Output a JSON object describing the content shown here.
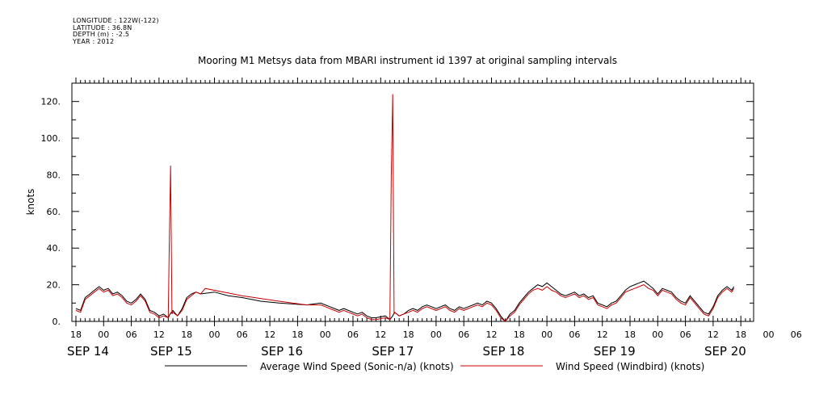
{
  "metadata": {
    "longitude": "LONGITUDE : 122W(-122)",
    "latitude": "LATITUDE : 36.8N",
    "depth": "DEPTH (m) : -2.5",
    "year": "YEAR : 2012"
  },
  "chart_data": {
    "type": "line",
    "title": "Mooring M1 Metsys data from MBARI instrument id 1397 at original sampling intervals",
    "xlabel": "",
    "ylabel": "knots",
    "xlim_hours": [
      0,
      150
    ],
    "ylim": [
      0,
      130
    ],
    "y_ticks": [
      0,
      20,
      40,
      60,
      80,
      100,
      120
    ],
    "y_tick_labels": [
      "0.",
      "20.",
      "40.",
      "60.",
      "80.",
      "100.",
      "120."
    ],
    "x_tick_labels": [
      "18",
      "00",
      "06",
      "12",
      "18",
      "00",
      "06",
      "12",
      "18",
      "00",
      "06",
      "12",
      "18",
      "00",
      "06",
      "12",
      "18",
      "00",
      "06",
      "12",
      "18",
      "00",
      "06",
      "12",
      "18",
      "00",
      "06",
      "12",
      "18"
    ],
    "day_labels": [
      {
        "label": "SEP 14",
        "hour": 0
      },
      {
        "label": "SEP 15",
        "hour": 18
      },
      {
        "label": "SEP 16",
        "hour": 42
      },
      {
        "label": "SEP 17",
        "hour": 66
      },
      {
        "label": "SEP 18",
        "hour": 90
      },
      {
        "label": "SEP 19",
        "hour": 114
      },
      {
        "label": "SEP 20",
        "hour": 138
      }
    ],
    "x_units_note": "hours after 2012-09-14 18:00",
    "series": [
      {
        "name": "Average Wind Speed (Sonic-n/a) (knots)",
        "color": "#000000",
        "points": [
          [
            0,
            7
          ],
          [
            1,
            6
          ],
          [
            2,
            13
          ],
          [
            3,
            15
          ],
          [
            4,
            17
          ],
          [
            5,
            19
          ],
          [
            6,
            17
          ],
          [
            7,
            18
          ],
          [
            8,
            15
          ],
          [
            9,
            16
          ],
          [
            10,
            14
          ],
          [
            11,
            11
          ],
          [
            12,
            10
          ],
          [
            13,
            12
          ],
          [
            14,
            15
          ],
          [
            15,
            12
          ],
          [
            16,
            6
          ],
          [
            17,
            5
          ],
          [
            18,
            3
          ],
          [
            19,
            4
          ],
          [
            20,
            2
          ],
          [
            20.4,
            4
          ],
          [
            21,
            6
          ],
          [
            22,
            3
          ],
          [
            23,
            7
          ],
          [
            24,
            13
          ],
          [
            25,
            15
          ],
          [
            26,
            16
          ],
          [
            27,
            15
          ],
          [
            30,
            16
          ],
          [
            33,
            14
          ],
          [
            36,
            13
          ],
          [
            40,
            11
          ],
          [
            44,
            10
          ],
          [
            50,
            9
          ],
          [
            53,
            10
          ],
          [
            54,
            9
          ],
          [
            55,
            8
          ],
          [
            56,
            7
          ],
          [
            57,
            6
          ],
          [
            58,
            7
          ],
          [
            59,
            6
          ],
          [
            60,
            5
          ],
          [
            61,
            4
          ],
          [
            62,
            5
          ],
          [
            63,
            3
          ],
          [
            64,
            2
          ],
          [
            65,
            2
          ],
          [
            67,
            3
          ],
          [
            68,
            1
          ],
          [
            68.6,
            3
          ],
          [
            69,
            5
          ],
          [
            70,
            3
          ],
          [
            71,
            4
          ],
          [
            72,
            6
          ],
          [
            73,
            7
          ],
          [
            74,
            6
          ],
          [
            75,
            8
          ],
          [
            76,
            9
          ],
          [
            77,
            8
          ],
          [
            78,
            7
          ],
          [
            79,
            8
          ],
          [
            80,
            9
          ],
          [
            81,
            7
          ],
          [
            82,
            6
          ],
          [
            83,
            8
          ],
          [
            84,
            7
          ],
          [
            85,
            8
          ],
          [
            86,
            9
          ],
          [
            87,
            10
          ],
          [
            88,
            9
          ],
          [
            89,
            11
          ],
          [
            90,
            10
          ],
          [
            91,
            7
          ],
          [
            92,
            3
          ],
          [
            93,
            0
          ],
          [
            94,
            4
          ],
          [
            95,
            6
          ],
          [
            96,
            10
          ],
          [
            97,
            13
          ],
          [
            98,
            16
          ],
          [
            99,
            18
          ],
          [
            100,
            20
          ],
          [
            101,
            19
          ],
          [
            102,
            21
          ],
          [
            103,
            19
          ],
          [
            104,
            17
          ],
          [
            105,
            15
          ],
          [
            106,
            14
          ],
          [
            107,
            15
          ],
          [
            108,
            16
          ],
          [
            109,
            14
          ],
          [
            110,
            15
          ],
          [
            111,
            13
          ],
          [
            112,
            14
          ],
          [
            113,
            10
          ],
          [
            114,
            9
          ],
          [
            115,
            8
          ],
          [
            116,
            10
          ],
          [
            117,
            11
          ],
          [
            118,
            14
          ],
          [
            119,
            17
          ],
          [
            120,
            19
          ],
          [
            121,
            20
          ],
          [
            122,
            21
          ],
          [
            123,
            22
          ],
          [
            124,
            20
          ],
          [
            125,
            18
          ],
          [
            126,
            15
          ],
          [
            127,
            18
          ],
          [
            128,
            17
          ],
          [
            129,
            16
          ],
          [
            130,
            13
          ],
          [
            131,
            11
          ],
          [
            132,
            10
          ],
          [
            133,
            14
          ],
          [
            134,
            11
          ],
          [
            135,
            8
          ],
          [
            136,
            5
          ],
          [
            137,
            4
          ],
          [
            138,
            8
          ],
          [
            139,
            14
          ],
          [
            140,
            17
          ],
          [
            141,
            19
          ],
          [
            142,
            17
          ],
          [
            142.5,
            19
          ]
        ]
      },
      {
        "name": "Wind Speed (Windbird) (knots)",
        "color": "#cc0000",
        "points": [
          [
            0,
            6
          ],
          [
            1,
            5
          ],
          [
            2,
            12
          ],
          [
            3,
            14
          ],
          [
            4,
            16
          ],
          [
            5,
            18
          ],
          [
            6,
            16
          ],
          [
            7,
            17
          ],
          [
            8,
            14
          ],
          [
            9,
            15
          ],
          [
            10,
            13
          ],
          [
            11,
            10
          ],
          [
            12,
            9
          ],
          [
            13,
            11
          ],
          [
            14,
            14
          ],
          [
            15,
            11
          ],
          [
            16,
            5
          ],
          [
            17,
            4
          ],
          [
            18,
            2
          ],
          [
            19,
            3
          ],
          [
            20,
            2
          ],
          [
            20.2,
            40
          ],
          [
            20.5,
            85
          ],
          [
            20.8,
            4
          ],
          [
            21,
            5
          ],
          [
            22,
            3
          ],
          [
            23,
            6
          ],
          [
            24,
            12
          ],
          [
            25,
            14
          ],
          [
            26,
            16
          ],
          [
            27,
            15
          ],
          [
            28,
            18
          ],
          [
            36,
            14
          ],
          [
            44,
            11
          ],
          [
            50,
            9
          ],
          [
            53,
            9
          ],
          [
            54,
            8
          ],
          [
            55,
            7
          ],
          [
            56,
            6
          ],
          [
            57,
            5
          ],
          [
            58,
            6
          ],
          [
            59,
            5
          ],
          [
            60,
            4
          ],
          [
            61,
            3
          ],
          [
            62,
            4
          ],
          [
            63,
            2
          ],
          [
            64,
            1
          ],
          [
            65,
            1
          ],
          [
            67,
            2
          ],
          [
            68,
            1
          ],
          [
            68.3,
            80
          ],
          [
            68.6,
            124
          ],
          [
            68.9,
            4
          ],
          [
            69,
            5
          ],
          [
            70,
            3
          ],
          [
            71,
            4
          ],
          [
            72,
            5
          ],
          [
            73,
            6
          ],
          [
            74,
            5
          ],
          [
            75,
            7
          ],
          [
            76,
            8
          ],
          [
            77,
            7
          ],
          [
            78,
            6
          ],
          [
            79,
            7
          ],
          [
            80,
            8
          ],
          [
            81,
            6
          ],
          [
            82,
            5
          ],
          [
            83,
            7
          ],
          [
            84,
            6
          ],
          [
            85,
            7
          ],
          [
            86,
            8
          ],
          [
            87,
            9
          ],
          [
            88,
            8
          ],
          [
            89,
            10
          ],
          [
            90,
            9
          ],
          [
            91,
            6
          ],
          [
            92,
            2
          ],
          [
            93,
            0
          ],
          [
            94,
            3
          ],
          [
            95,
            5
          ],
          [
            96,
            9
          ],
          [
            97,
            12
          ],
          [
            98,
            15
          ],
          [
            99,
            17
          ],
          [
            100,
            18
          ],
          [
            101,
            17
          ],
          [
            102,
            19
          ],
          [
            103,
            17
          ],
          [
            104,
            16
          ],
          [
            105,
            14
          ],
          [
            106,
            13
          ],
          [
            107,
            14
          ],
          [
            108,
            15
          ],
          [
            109,
            13
          ],
          [
            110,
            14
          ],
          [
            111,
            12
          ],
          [
            112,
            13
          ],
          [
            113,
            9
          ],
          [
            114,
            8
          ],
          [
            115,
            7
          ],
          [
            116,
            9
          ],
          [
            117,
            10
          ],
          [
            118,
            13
          ],
          [
            119,
            16
          ],
          [
            120,
            17
          ],
          [
            121,
            18
          ],
          [
            122,
            19
          ],
          [
            123,
            20
          ],
          [
            124,
            18
          ],
          [
            125,
            17
          ],
          [
            126,
            14
          ],
          [
            127,
            17
          ],
          [
            128,
            16
          ],
          [
            129,
            15
          ],
          [
            130,
            12
          ],
          [
            131,
            10
          ],
          [
            132,
            9
          ],
          [
            133,
            13
          ],
          [
            134,
            10
          ],
          [
            135,
            7
          ],
          [
            136,
            4
          ],
          [
            137,
            3
          ],
          [
            138,
            7
          ],
          [
            139,
            13
          ],
          [
            140,
            16
          ],
          [
            141,
            18
          ],
          [
            142,
            16
          ],
          [
            142.5,
            18
          ]
        ]
      }
    ],
    "grid": false,
    "legend_position": "bottom"
  }
}
